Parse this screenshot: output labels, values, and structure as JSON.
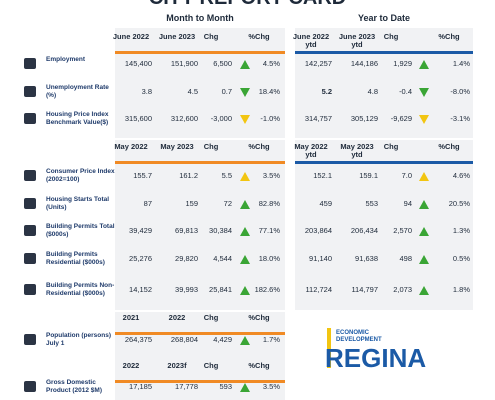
{
  "title": "CITY REPORT CARD",
  "group_headers": {
    "month": "Month to Month",
    "ytd": "Year to Date"
  },
  "sections": [
    {
      "headers": {
        "month": [
          "June 2022",
          "June 2023",
          "Chg",
          "%Chg"
        ],
        "ytd": [
          "June 2022 ytd",
          "June 2023 ytd",
          "Chg",
          "%Chg"
        ]
      },
      "rows": [
        {
          "label": "Employment",
          "month": [
            "145,400",
            "151,900",
            "6,500",
            "4.5%"
          ],
          "month_trend": "up-green",
          "ytd": [
            "142,257",
            "144,186",
            "1,929",
            "1.4%"
          ],
          "ytd_trend": "up-green"
        },
        {
          "label": "Unemployment Rate (%)",
          "month": [
            "3.8",
            "4.5",
            "0.7",
            "18.4%"
          ],
          "month_trend": "down-green",
          "ytd": [
            "5.2",
            "4.8",
            "-0.4",
            "-8.0%"
          ],
          "ytd_trend": "down-green"
        },
        {
          "label": "Housing Price Index Benchmark Value($)",
          "month": [
            "315,600",
            "312,600",
            "-3,000",
            "-1.0%"
          ],
          "month_trend": "down-yellow",
          "ytd": [
            "314,757",
            "305,129",
            "-9,629",
            "-3.1%"
          ],
          "ytd_trend": "down-yellow"
        }
      ]
    },
    {
      "headers": {
        "month": [
          "May 2022",
          "May 2023",
          "Chg",
          "%Chg"
        ],
        "ytd": [
          "May 2022 ytd",
          "May 2023 ytd",
          "Chg",
          "%Chg"
        ]
      },
      "rows": [
        {
          "label": "Consumer Price Index (2002=100)",
          "month": [
            "155.7",
            "161.2",
            "5.5",
            "3.5%"
          ],
          "month_trend": "up-yellow",
          "ytd": [
            "152.1",
            "159.1",
            "7.0",
            "4.6%"
          ],
          "ytd_trend": "up-yellow"
        },
        {
          "label": "Housing Starts Total (Units)",
          "month": [
            "87",
            "159",
            "72",
            "82.8%"
          ],
          "month_trend": "up-green",
          "ytd": [
            "459",
            "553",
            "94",
            "20.5%"
          ],
          "ytd_trend": "up-green"
        },
        {
          "label": "Building Permits Total ($000s)",
          "month": [
            "39,429",
            "69,813",
            "30,384",
            "77.1%"
          ],
          "month_trend": "up-green",
          "ytd": [
            "203,864",
            "206,434",
            "2,570",
            "1.3%"
          ],
          "ytd_trend": "up-green"
        },
        {
          "label": "Building Permits Residential ($000s)",
          "month": [
            "25,276",
            "29,820",
            "4,544",
            "18.0%"
          ],
          "month_trend": "up-green",
          "ytd": [
            "91,140",
            "91,638",
            "498",
            "0.5%"
          ],
          "ytd_trend": "up-green"
        },
        {
          "label": "Building Permits Non-Residential ($000s)",
          "month": [
            "14,152",
            "39,993",
            "25,841",
            "182.6%"
          ],
          "month_trend": "up-green",
          "ytd": [
            "112,724",
            "114,797",
            "2,073",
            "1.8%"
          ],
          "ytd_trend": "up-green"
        }
      ]
    },
    {
      "headers": {
        "month": [
          "2021",
          "2022",
          "Chg",
          "%Chg"
        ]
      },
      "rows": [
        {
          "label": "Population (persons) July 1",
          "month": [
            "264,375",
            "268,804",
            "4,429",
            "1.7%"
          ],
          "month_trend": "up-green"
        }
      ]
    },
    {
      "headers": {
        "month": [
          "2022",
          "2023f",
          "Chg",
          "%Chg"
        ]
      },
      "rows": [
        {
          "label": "Gross Domestic Product (2012 $M)",
          "month": [
            "17,185",
            "17,778",
            "593",
            "3.5%"
          ],
          "month_trend": "up-green"
        }
      ]
    }
  ],
  "logo": {
    "line1": "ECONOMIC",
    "line2": "DEVELOPMENT",
    "name": "REGINA"
  }
}
